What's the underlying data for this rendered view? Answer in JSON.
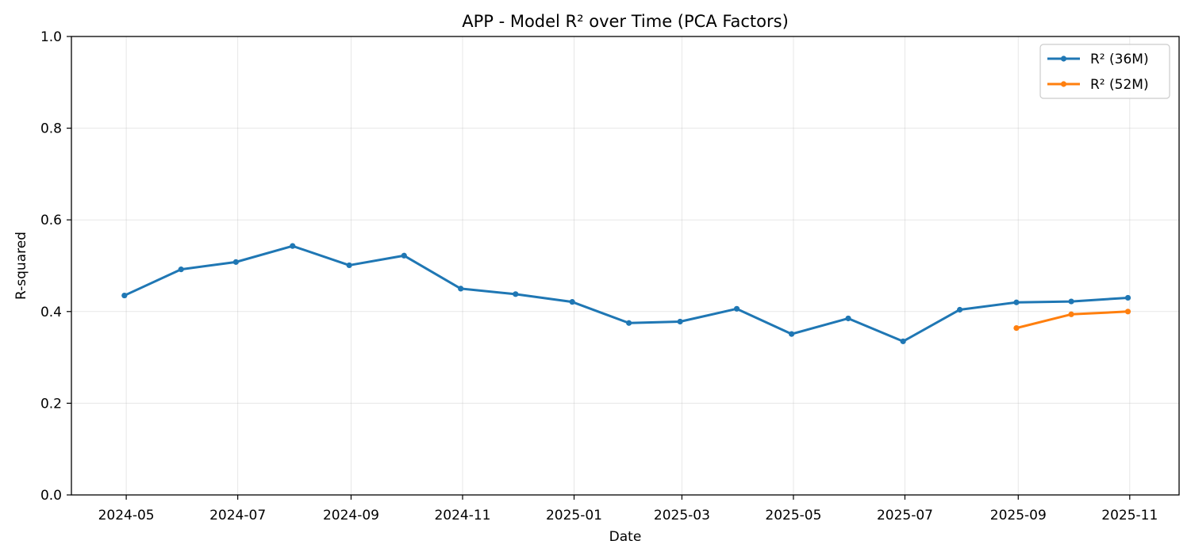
{
  "chart_data": {
    "type": "line",
    "title": "APP - Model R² over Time (PCA Factors)",
    "xlabel": "Date",
    "ylabel": "R-squared",
    "xlim": [
      "2024-04-01",
      "2025-11-28"
    ],
    "ylim": [
      0,
      1
    ],
    "x_ticks": [
      "2024-05",
      "2024-07",
      "2024-09",
      "2024-11",
      "2025-01",
      "2025-03",
      "2025-05",
      "2025-07",
      "2025-09",
      "2025-11"
    ],
    "y_ticks": [
      "0.0",
      "0.2",
      "0.4",
      "0.6",
      "0.8",
      "1.0"
    ],
    "grid": true,
    "legend_position": "top-right",
    "series": [
      {
        "name": "R² (36M)",
        "color": "#1f77b4",
        "x": [
          "2024-04-30",
          "2024-05-31",
          "2024-06-30",
          "2024-07-31",
          "2024-08-31",
          "2024-09-30",
          "2024-10-31",
          "2024-11-30",
          "2024-12-31",
          "2025-01-31",
          "2025-02-28",
          "2025-03-31",
          "2025-04-30",
          "2025-05-31",
          "2025-06-30",
          "2025-07-31",
          "2025-08-31",
          "2025-09-30",
          "2025-10-31"
        ],
        "values": [
          0.435,
          0.492,
          0.508,
          0.543,
          0.501,
          0.522,
          0.45,
          0.438,
          0.421,
          0.375,
          0.378,
          0.406,
          0.351,
          0.385,
          0.335,
          0.404,
          0.42,
          0.422,
          0.43
        ]
      },
      {
        "name": "R² (52M)",
        "color": "#ff7f0e",
        "x": [
          "2025-08-31",
          "2025-09-30",
          "2025-10-31"
        ],
        "values": [
          0.364,
          0.394,
          0.4
        ]
      }
    ]
  }
}
